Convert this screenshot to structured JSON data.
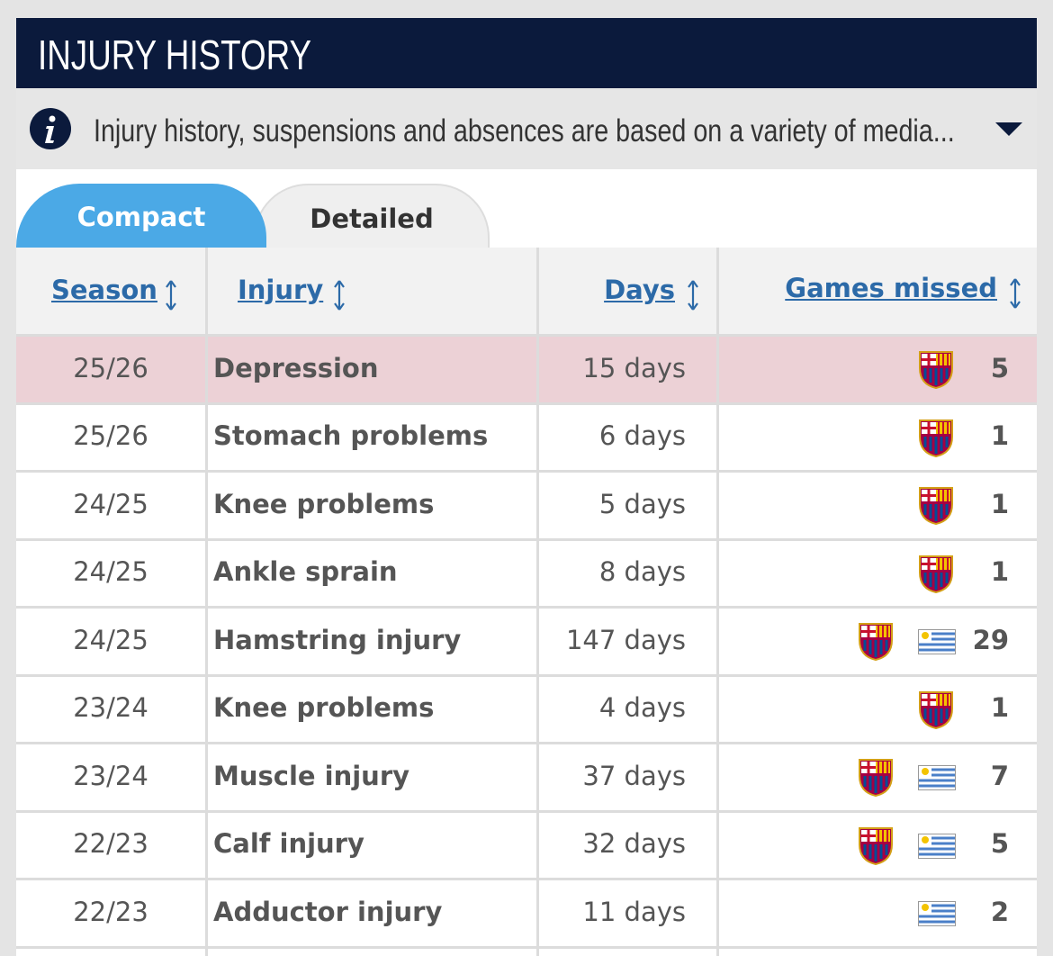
{
  "header": {
    "title": "INJURY HISTORY"
  },
  "info": "Injury history, suspensions and absences are based on a variety of media...",
  "tabs": [
    "Compact",
    "Detailed"
  ],
  "table": {
    "columns": [
      "Season",
      "Injury",
      "Days",
      "Games missed"
    ],
    "rows": [
      [
        "25/26",
        "Depression",
        "15 days",
        5
      ],
      [
        "25/26",
        "Stomach problems",
        "6 days",
        1
      ],
      [
        "24/25",
        "Knee problems",
        "5 days",
        1
      ],
      [
        "24/25",
        "Ankle sprain",
        "8 days",
        1
      ],
      [
        "24/25",
        "Hamstring injury",
        "147 days",
        29
      ],
      [
        "23/24",
        "Knee problems",
        "4 days",
        1
      ],
      [
        "23/24",
        "Muscle injury",
        "37 days",
        7
      ],
      [
        "22/23",
        "Calf injury",
        "32 days",
        5
      ],
      [
        "22/23",
        "Adductor injury",
        "11 days",
        2
      ]
    ]
  }
}
